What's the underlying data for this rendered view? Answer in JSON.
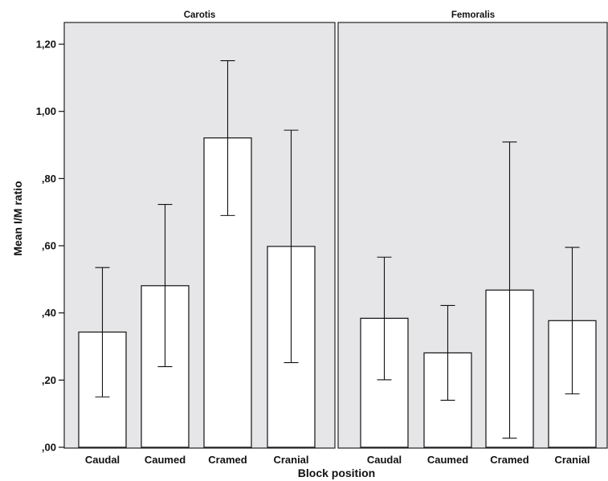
{
  "chart_data": {
    "type": "bar",
    "xlabel": "Block position",
    "ylabel": "Mean I/M ratio",
    "ylim": [
      0,
      1.2
    ],
    "yticks": [
      0,
      0.2,
      0.4,
      0.6,
      0.8,
      1.0,
      1.2
    ],
    "ytick_labels": [
      ",00",
      ",20",
      ",40",
      ",60",
      ",80",
      "1,00",
      "1,20"
    ],
    "grid": false,
    "categories": [
      "Caudal",
      "Caumed",
      "Cramed",
      "Cranial"
    ],
    "panels": [
      {
        "title": "Carotis",
        "values": [
          0.343,
          0.481,
          0.921,
          0.598
        ],
        "error_low": [
          0.15,
          0.24,
          0.69,
          0.252
        ],
        "error_high": [
          0.535,
          0.723,
          1.151,
          0.944
        ]
      },
      {
        "title": "Femoralis",
        "values": [
          0.384,
          0.281,
          0.468,
          0.377
        ],
        "error_low": [
          0.201,
          0.14,
          0.027,
          0.159
        ],
        "error_high": [
          0.566,
          0.422,
          0.909,
          0.595
        ]
      }
    ]
  }
}
